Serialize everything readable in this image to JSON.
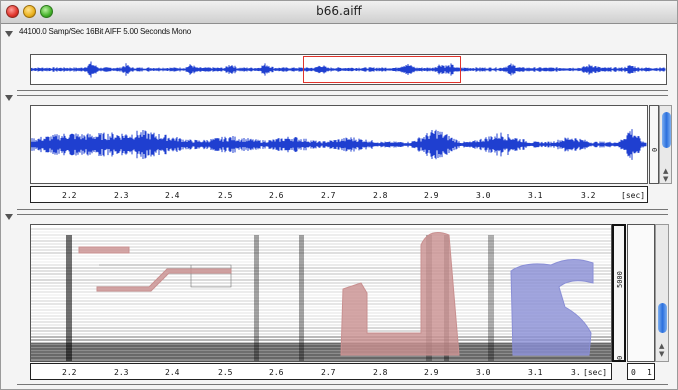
{
  "window": {
    "title": "b66.aiff"
  },
  "info": {
    "text": "44100.0 Samp/Sec  16Bit AIFF   5.00 Seconds  Mono"
  },
  "ruler_top": {
    "ticks": [
      "2.2",
      "2.3",
      "2.4",
      "2.5",
      "2.6",
      "2.7",
      "2.8",
      "2.9",
      "3.0",
      "3.1",
      "3.2"
    ],
    "unit": "[sec]"
  },
  "ruler_bottom": {
    "ticks": [
      "2.2",
      "2.3",
      "2.4",
      "2.5",
      "2.6",
      "2.7",
      "2.8",
      "2.9",
      "3.0",
      "3.1",
      "3."
    ],
    "unit": "[sec]"
  },
  "amp_scale": {
    "value": "0"
  },
  "freq_scale": {
    "top": "5000",
    "bottom": "0"
  },
  "range_box": {
    "min": "0",
    "max": "1"
  },
  "colors": {
    "waveform": "#1f3fd0",
    "selection": "#e0342c",
    "pink_region": "#c99090",
    "blue_region": "#8a8fd6"
  },
  "icons": [
    "collapse-triangle-icon",
    "scroll-up-icon",
    "scroll-down-icon"
  ]
}
